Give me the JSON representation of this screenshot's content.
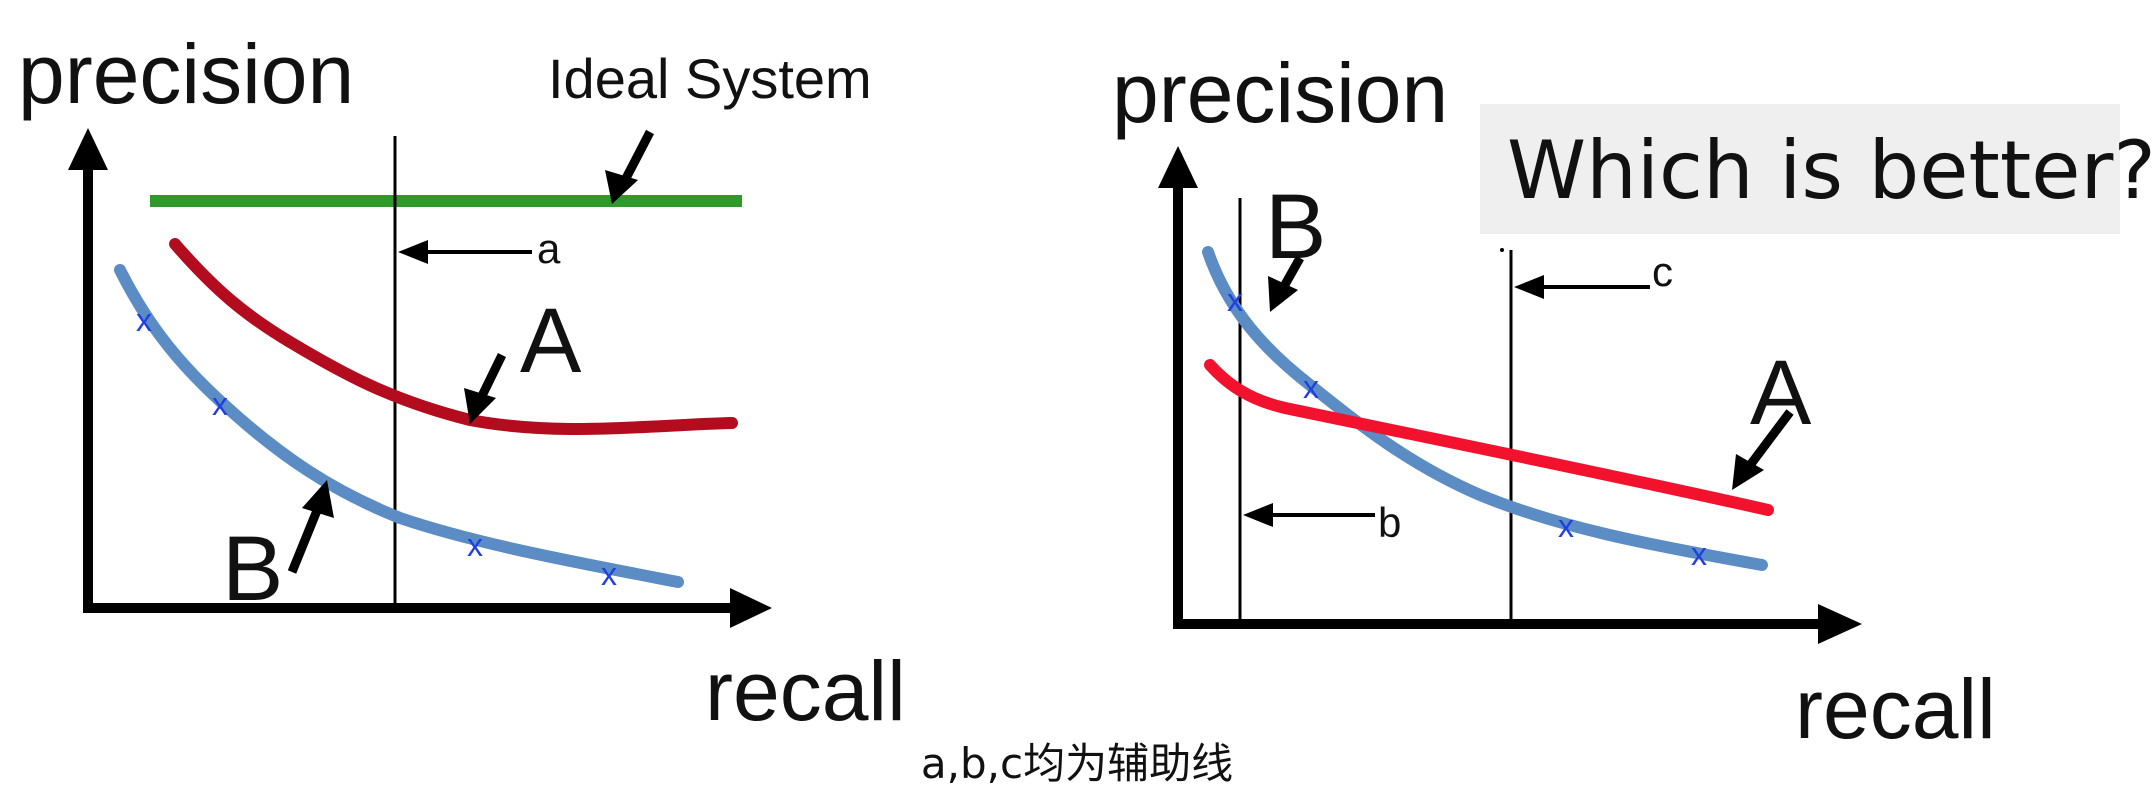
{
  "left_panel": {
    "y_axis_label": "precision",
    "x_axis_label": "recall",
    "ideal_label": "Ideal System",
    "aux_line_label": "a",
    "curve_a_label": "A",
    "curve_b_label": "B",
    "marker_glyph": "x"
  },
  "right_panel": {
    "y_axis_label": "precision",
    "x_axis_label": "recall",
    "question": "Which is better?",
    "aux_line_b_label": "b",
    "aux_line_c_label": "c",
    "curve_a_label": "A",
    "curve_b_label": "B",
    "marker_glyph": "x"
  },
  "caption": "a,b,c均为辅助线",
  "colors": {
    "ideal_line": "#2e9a2a",
    "curve_a_left": "#b30c1e",
    "curve_a_right": "#f2122e",
    "curve_b": "#5b8cc4",
    "markers": "#1f3fe0",
    "axes": "#000000",
    "question_box": "#efefef"
  }
}
